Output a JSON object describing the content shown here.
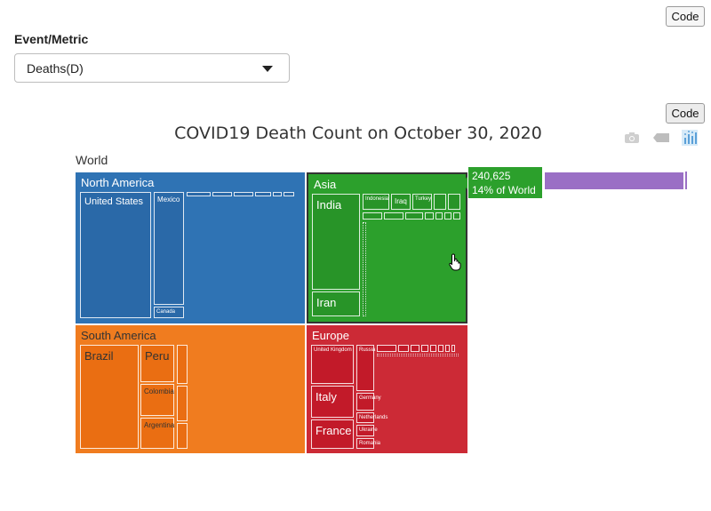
{
  "buttons": {
    "code_top": "Code",
    "code_chart": "Code"
  },
  "form": {
    "metric_label": "Event/Metric",
    "metric_selected": "Deaths(D)"
  },
  "chart": {
    "title": "COVID19 Death Count on October 30, 2020",
    "root_label": "World",
    "modebar_icons": [
      "camera-icon",
      "tag-icon",
      "plotly-logo-icon"
    ],
    "tooltip": {
      "value": "240,625",
      "percent": "14% of World",
      "color": "#2ca02c"
    },
    "pathbar_color": "#9a6fc5"
  },
  "chart_data": {
    "type": "treemap",
    "title": "COVID19 Death Count on October 30, 2020",
    "root": "World",
    "colors": {
      "North America": "#2f73b4",
      "Asia": "#2ca02c",
      "South America": "#f07c1f",
      "Europe": "#cc2a36"
    },
    "regions": [
      {
        "name": "North America",
        "countries": [
          "United States",
          "Mexico",
          "Canada"
        ]
      },
      {
        "name": "Asia",
        "value": 240625,
        "share_of_world": "14%",
        "countries": [
          "India",
          "Indonesia",
          "Iraq",
          "Turkey",
          "Iran"
        ]
      },
      {
        "name": "South America",
        "countries": [
          "Brazil",
          "Peru",
          "Colombia",
          "Argentina"
        ]
      },
      {
        "name": "Europe",
        "countries": [
          "United Kingdom",
          "Russia",
          "Italy",
          "Germany",
          "France",
          "Netherlands",
          "Ukraine",
          "Romania"
        ]
      }
    ]
  }
}
